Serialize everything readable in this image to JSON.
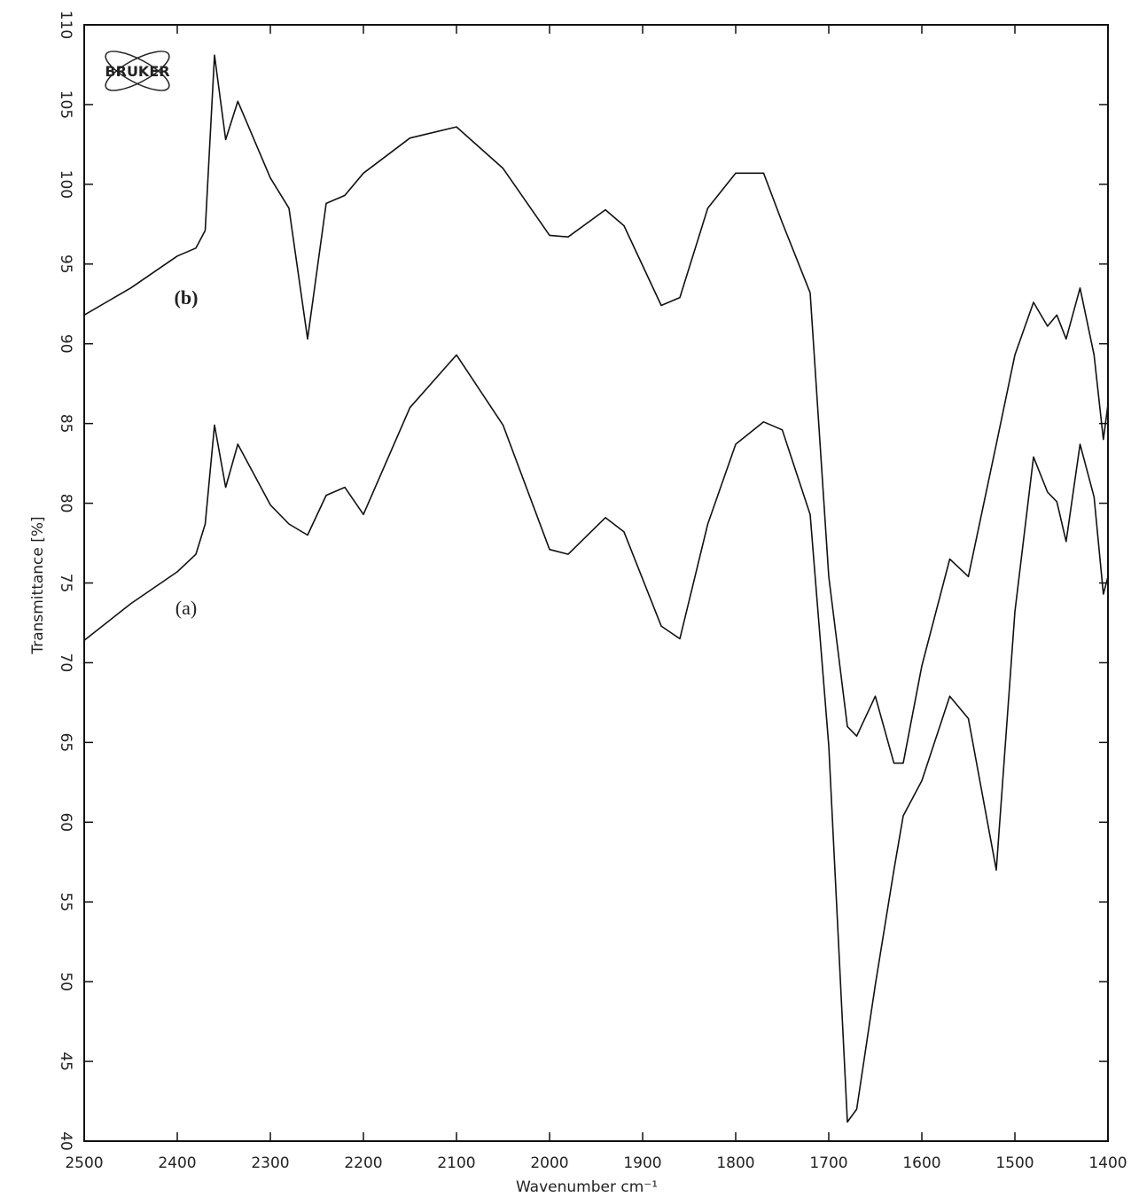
{
  "chart_data": {
    "type": "line",
    "x_label": "Wavenumber cm⁻¹",
    "y_label": "Transmittance [%]",
    "logo": "BRUKER",
    "x": [
      2500,
      2450,
      2400,
      2380,
      2370,
      2360,
      2348,
      2335,
      2300,
      2280,
      2260,
      2240,
      2220,
      2200,
      2150,
      2100,
      2050,
      2000,
      1980,
      1940,
      1920,
      1880,
      1860,
      1830,
      1800,
      1770,
      1750,
      1720,
      1700,
      1680,
      1670,
      1650,
      1630,
      1620,
      1600,
      1570,
      1550,
      1520,
      1500,
      1480,
      1465,
      1455,
      1445,
      1430,
      1415,
      1405,
      1400
    ],
    "series": [
      {
        "name": "(a)",
        "color": "#111111",
        "values": [
          71.4,
          73.7,
          75.7,
          76.8,
          78.7,
          84.9,
          81,
          83.7,
          79.9,
          78.7,
          78,
          80.5,
          81,
          79.3,
          86,
          89.3,
          84.9,
          77.1,
          76.8,
          79.1,
          78.2,
          72.3,
          71.5,
          78.7,
          83.7,
          85.1,
          84.6,
          79.3,
          64.8,
          41.2,
          42,
          49.8,
          57,
          60.4,
          62.6,
          67.9,
          66.5,
          57,
          73.2,
          82.9,
          80.7,
          80.1,
          77.6,
          83.7,
          80.4,
          74.3,
          75.4
        ]
      },
      {
        "name": "(b)",
        "color": "#111111",
        "values": [
          91.8,
          93.5,
          95.5,
          96,
          97.1,
          108.1,
          102.8,
          105.2,
          100.4,
          98.5,
          90.3,
          98.8,
          99.3,
          100.7,
          102.9,
          103.6,
          101,
          96.8,
          96.7,
          98.4,
          97.4,
          92.4,
          92.9,
          98.5,
          100.7,
          100.7,
          97.6,
          93.2,
          75.4,
          66,
          65.4,
          67.9,
          63.7,
          63.7,
          69.8,
          76.5,
          75.4,
          83.7,
          89.3,
          92.6,
          91.1,
          91.8,
          90.3,
          93.5,
          89.3,
          84,
          86.2
        ]
      }
    ],
    "xlim": [
      2500,
      1400
    ],
    "xticks": [
      2500,
      2400,
      2300,
      2200,
      2100,
      2000,
      1900,
      1800,
      1700,
      1600,
      1500,
      1400
    ],
    "ylim": [
      40,
      110
    ],
    "yticks": [
      40,
      45,
      50,
      55,
      60,
      65,
      70,
      75,
      80,
      85,
      90,
      95,
      100,
      105,
      110
    ],
    "grid": false
  }
}
